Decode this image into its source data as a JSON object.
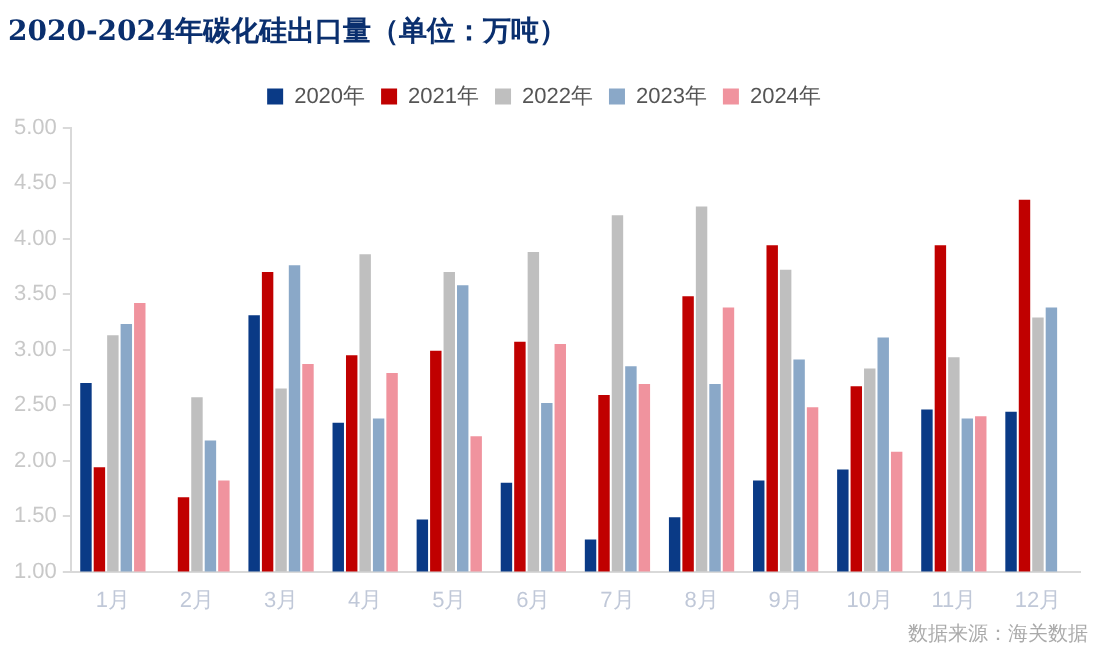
{
  "chart_data": {
    "type": "bar",
    "title": "2020-2024年碳化硅出口量（单位：万吨）",
    "categories": [
      "1月",
      "2月",
      "3月",
      "4月",
      "5月",
      "6月",
      "7月",
      "8月",
      "9月",
      "10月",
      "11月",
      "12月"
    ],
    "series": [
      {
        "name": "2020年",
        "color": "#0a3a86",
        "values": [
          2.7,
          null,
          3.31,
          2.34,
          1.47,
          1.8,
          1.29,
          1.49,
          1.82,
          1.92,
          2.46,
          2.44
        ]
      },
      {
        "name": "2021年",
        "color": "#c00000",
        "values": [
          1.94,
          1.67,
          3.7,
          2.95,
          2.99,
          3.07,
          2.59,
          3.48,
          3.94,
          2.67,
          3.94,
          4.35
        ]
      },
      {
        "name": "2022年",
        "color": "#bfbfbf",
        "values": [
          3.13,
          2.57,
          2.65,
          3.86,
          3.7,
          3.88,
          4.21,
          4.29,
          3.72,
          2.83,
          2.93,
          3.29
        ]
      },
      {
        "name": "2023年",
        "color": "#8aa8c8",
        "values": [
          3.23,
          2.18,
          3.76,
          2.38,
          3.58,
          2.52,
          2.85,
          2.69,
          2.91,
          3.11,
          2.38,
          3.38
        ]
      },
      {
        "name": "2024年",
        "color": "#f0939e",
        "values": [
          3.42,
          1.82,
          2.87,
          2.79,
          2.22,
          3.05,
          2.69,
          3.38,
          2.48,
          2.08,
          2.4,
          null
        ]
      }
    ],
    "ylim": [
      1,
      5
    ],
    "yticks": [
      {
        "value": 1,
        "label": "1.00"
      },
      {
        "value": 1.5,
        "label": "1.50"
      },
      {
        "value": 2,
        "label": "2.00"
      },
      {
        "value": 2.5,
        "label": "2.50"
      },
      {
        "value": 3,
        "label": "3.00"
      },
      {
        "value": 3.5,
        "label": "3.50"
      },
      {
        "value": 4,
        "label": "4.00"
      },
      {
        "value": 4.5,
        "label": "4.50"
      },
      {
        "value": 5,
        "label": "5.00"
      }
    ],
    "grid": false,
    "legend": "top",
    "annotations": [
      "数据来源：海关数据"
    ]
  }
}
